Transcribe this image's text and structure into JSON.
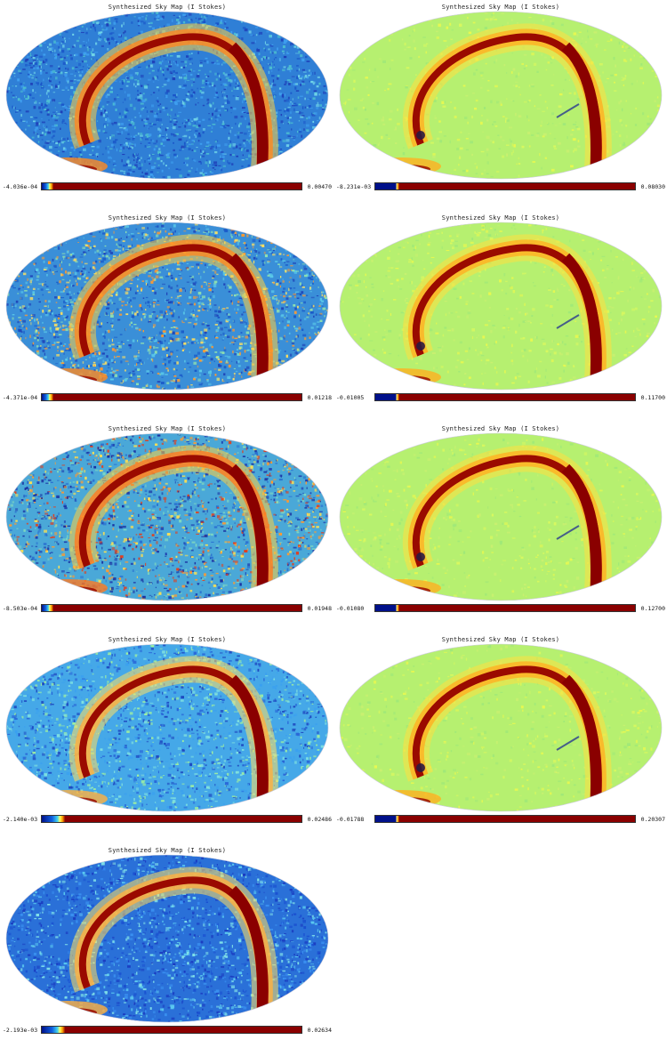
{
  "panels": [
    {
      "title": "Synthesized Sky Map (I Stokes)",
      "min": "-4.036e-04",
      "max": "0.00470",
      "style": "noisy_a",
      "ramp": "narrow"
    },
    {
      "title": "Synthesized Sky Map (I Stokes)",
      "min": "-8.231e-03",
      "max": "0.08030",
      "style": "smooth",
      "ramp": "step"
    },
    {
      "title": "Synthesized Sky Map (I Stokes)",
      "min": "-4.371e-04",
      "max": "0.01218",
      "style": "noisy_b",
      "ramp": "narrow"
    },
    {
      "title": "Synthesized Sky Map (I Stokes)",
      "min": "-0.01005",
      "max": "0.11700",
      "style": "smooth",
      "ramp": "step"
    },
    {
      "title": "Synthesized Sky Map (I Stokes)",
      "min": "-8.503e-04",
      "max": "0.01948",
      "style": "noisy_c",
      "ramp": "narrow"
    },
    {
      "title": "Synthesized Sky Map (I Stokes)",
      "min": "-0.01080",
      "max": "0.12700",
      "style": "smooth",
      "ramp": "step"
    },
    {
      "title": "Synthesized Sky Map (I Stokes)",
      "min": "-2.140e-03",
      "max": "0.02486",
      "style": "noisy_d",
      "ramp": "wide"
    },
    {
      "title": "Synthesized Sky Map (I Stokes)",
      "min": "-0.01788",
      "max": "0.20307",
      "style": "smooth",
      "ramp": "step"
    },
    {
      "title": "Synthesized Sky Map (I Stokes)",
      "min": "-2.193e-03",
      "max": "0.02634",
      "style": "noisy_e",
      "ramp": "wide"
    }
  ]
}
